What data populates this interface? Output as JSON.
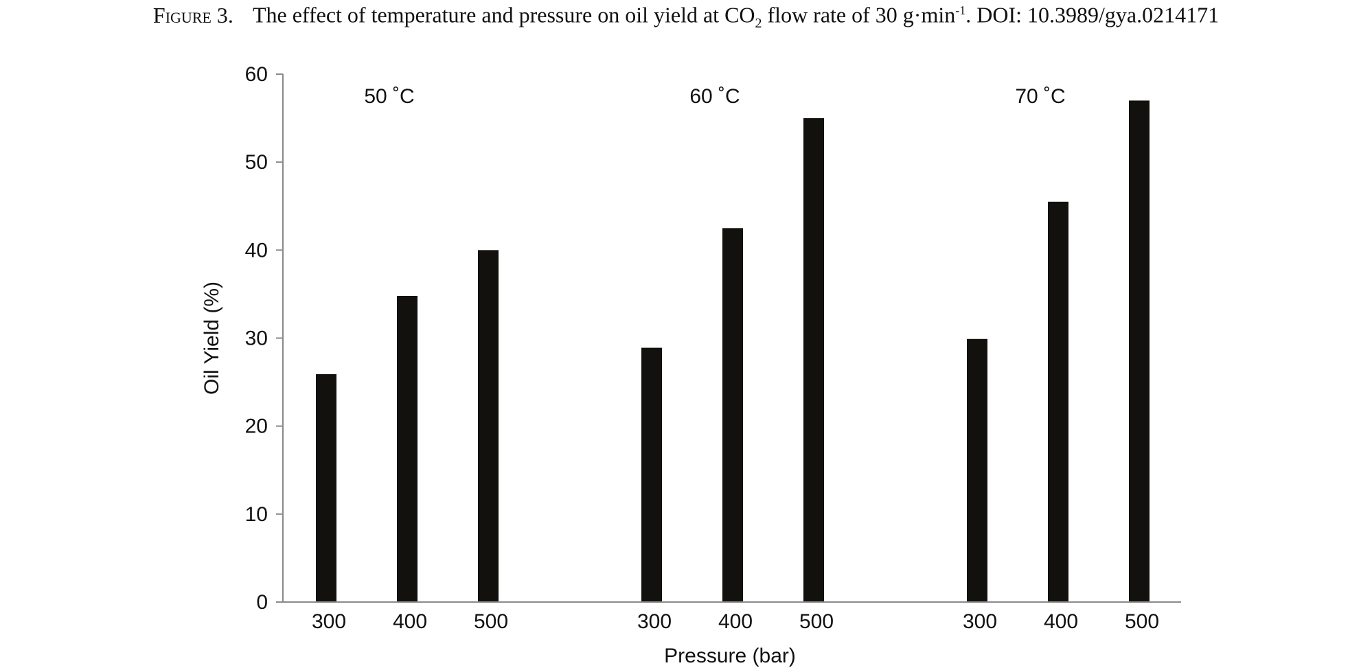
{
  "caption": {
    "figure_label": "Figure 3.",
    "text_before_sub": "The effect of temperature and pressure on oil yield at CO",
    "sub": "2",
    "text_mid": " flow rate of 30 g·min",
    "sup": "-1",
    "text_after": ". DOI: 10.3989/gya.0214171"
  },
  "chart_data": {
    "type": "bar",
    "xlabel": "Pressure (bar)",
    "ylabel": "Oil Yield (%)",
    "ylim": [
      0,
      60
    ],
    "yticks": [
      0,
      10,
      20,
      30,
      40,
      50,
      60
    ],
    "grid": false,
    "bar_color": "#12110d",
    "groups": [
      {
        "label": "50 ˚C",
        "categories": [
          "300",
          "400",
          "500"
        ],
        "values": [
          25.9,
          34.8,
          40.0
        ]
      },
      {
        "label": "60 ˚C",
        "categories": [
          "300",
          "400",
          "500"
        ],
        "values": [
          28.9,
          42.5,
          55.0
        ]
      },
      {
        "label": "70 ˚C",
        "categories": [
          "300",
          "400",
          "500"
        ],
        "values": [
          29.9,
          45.5,
          57.0
        ]
      }
    ]
  }
}
